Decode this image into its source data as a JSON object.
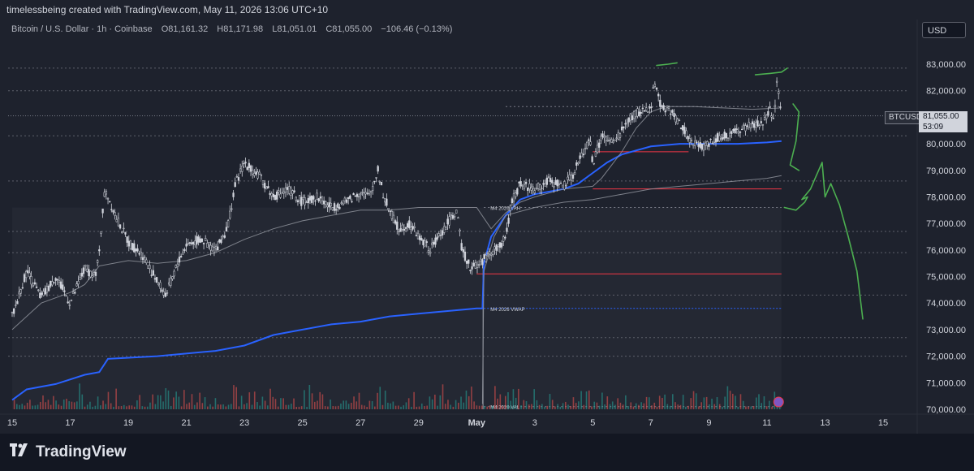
{
  "header": {
    "credit": "timelessbeing created with TradingView.com, May 11, 2026 13:06 UTC+10"
  },
  "legend": {
    "symbol": "Bitcoin / U.S. Dollar · 1h · Coinbase",
    "open": "O81,161.32",
    "high": "H81,171.98",
    "low": "L81,051.01",
    "close": "C81,055.00",
    "change": "−106.46 (−0.13%)"
  },
  "currency_button": "USD",
  "price_badge": {
    "symbol": "BTCUSD",
    "price": "81,055.00",
    "countdown": "53:09"
  },
  "brand": {
    "name": "TradingView"
  },
  "colors": {
    "bg": "#1e222d",
    "candle": "#d1d4dc",
    "vwap": "#2962ff",
    "level_red": "#f23645",
    "marker_green": "#4caf50",
    "volume_up": "#26a69a",
    "volume_down": "#ef5350"
  },
  "chart_data": {
    "type": "candlestick",
    "timeframe": "1h",
    "y_ticks": [
      83000,
      82000,
      81000,
      80000,
      79000,
      78000,
      77000,
      76000,
      75000,
      74000,
      73000,
      72000,
      71000,
      70000
    ],
    "y_tick_labels": [
      "83,000.00",
      "82,000.00",
      "81,000.00",
      "80,000.00",
      "79,000.00",
      "78,000.00",
      "77,000.00",
      "76,000.00",
      "75,000.00",
      "74,000.00",
      "73,000.00",
      "72,000.00",
      "71,000.00",
      "70,000.00"
    ],
    "x_ticks": [
      {
        "day": 15,
        "label": "15"
      },
      {
        "day": 17,
        "label": "17"
      },
      {
        "day": 19,
        "label": "19"
      },
      {
        "day": 21,
        "label": "21"
      },
      {
        "day": 23,
        "label": "23"
      },
      {
        "day": 25,
        "label": "25"
      },
      {
        "day": 27,
        "label": "27"
      },
      {
        "day": 29,
        "label": "29"
      },
      {
        "day": 31,
        "label": "May"
      },
      {
        "day": 33,
        "label": "3"
      },
      {
        "day": 35,
        "label": "5"
      },
      {
        "day": 37,
        "label": "7"
      },
      {
        "day": 39,
        "label": "9"
      },
      {
        "day": 41,
        "label": "11"
      },
      {
        "day": 43,
        "label": "13"
      },
      {
        "day": 45,
        "label": "15"
      }
    ],
    "price_path": [
      [
        15.0,
        73500
      ],
      [
        15.5,
        75200
      ],
      [
        16.0,
        74200
      ],
      [
        16.5,
        75000
      ],
      [
        17.0,
        74000
      ],
      [
        17.5,
        75300
      ],
      [
        17.9,
        75000
      ],
      [
        18.2,
        78300
      ],
      [
        18.6,
        77200
      ],
      [
        19.0,
        76300
      ],
      [
        19.5,
        75800
      ],
      [
        20.0,
        74800
      ],
      [
        20.3,
        74300
      ],
      [
        20.7,
        75500
      ],
      [
        21.0,
        76200
      ],
      [
        21.5,
        76400
      ],
      [
        22.0,
        76000
      ],
      [
        22.4,
        76800
      ],
      [
        22.7,
        78500
      ],
      [
        23.0,
        79300
      ],
      [
        23.5,
        78800
      ],
      [
        24.0,
        78000
      ],
      [
        24.5,
        78300
      ],
      [
        25.0,
        77800
      ],
      [
        25.5,
        78000
      ],
      [
        26.0,
        77600
      ],
      [
        26.5,
        77800
      ],
      [
        27.0,
        78200
      ],
      [
        27.3,
        78000
      ],
      [
        27.6,
        79000
      ],
      [
        27.8,
        78000
      ],
      [
        28.0,
        77500
      ],
      [
        28.3,
        76800
      ],
      [
        28.7,
        77000
      ],
      [
        29.0,
        76500
      ],
      [
        29.4,
        76000
      ],
      [
        29.7,
        76500
      ],
      [
        30.0,
        77000
      ],
      [
        30.3,
        77500
      ],
      [
        30.5,
        76000
      ],
      [
        30.8,
        75300
      ],
      [
        31.2,
        75600
      ],
      [
        31.6,
        76000
      ],
      [
        32.0,
        76400
      ],
      [
        32.2,
        77800
      ],
      [
        32.5,
        78500
      ],
      [
        33.0,
        78300
      ],
      [
        33.5,
        78600
      ],
      [
        34.0,
        78400
      ],
      [
        34.3,
        78800
      ],
      [
        34.6,
        79500
      ],
      [
        34.9,
        80200
      ],
      [
        35.0,
        79200
      ],
      [
        35.3,
        80300
      ],
      [
        35.7,
        80000
      ],
      [
        36.0,
        80500
      ],
      [
        36.3,
        81000
      ],
      [
        36.6,
        81200
      ],
      [
        37.0,
        81300
      ],
      [
        37.1,
        82500
      ],
      [
        37.3,
        81500
      ],
      [
        37.6,
        81300
      ],
      [
        38.0,
        80800
      ],
      [
        38.4,
        80000
      ],
      [
        38.8,
        79900
      ],
      [
        39.2,
        80200
      ],
      [
        39.6,
        80300
      ],
      [
        40.0,
        80500
      ],
      [
        40.5,
        80700
      ],
      [
        40.9,
        80800
      ],
      [
        41.1,
        81300
      ],
      [
        41.2,
        80600
      ],
      [
        41.35,
        82300
      ],
      [
        41.5,
        81055
      ]
    ],
    "series": [
      {
        "name": "M4 2026 VWAP",
        "type": "line",
        "points": [
          [
            15.0,
            70350
          ],
          [
            15.5,
            70750
          ],
          [
            16.5,
            70950
          ],
          [
            17.5,
            71300
          ],
          [
            18.0,
            71400
          ],
          [
            18.3,
            71900
          ],
          [
            20.0,
            72000
          ],
          [
            22.0,
            72200
          ],
          [
            23.0,
            72400
          ],
          [
            24.0,
            72800
          ],
          [
            25.0,
            73000
          ],
          [
            26.0,
            73200
          ],
          [
            27.0,
            73300
          ],
          [
            28.0,
            73500
          ],
          [
            29.0,
            73600
          ],
          [
            30.0,
            73700
          ],
          [
            31.0,
            73800
          ],
          [
            31.2,
            73800
          ],
          [
            31.25,
            75500
          ],
          [
            31.5,
            76500
          ],
          [
            32.0,
            77300
          ],
          [
            32.5,
            77900
          ],
          [
            33.0,
            78100
          ],
          [
            34.0,
            78300
          ],
          [
            34.5,
            78500
          ],
          [
            35.0,
            78900
          ],
          [
            35.5,
            79300
          ],
          [
            36.0,
            79600
          ],
          [
            37.0,
            79900
          ],
          [
            38.0,
            80000
          ],
          [
            39.0,
            80000
          ],
          [
            40.0,
            80000
          ],
          [
            41.0,
            80050
          ],
          [
            41.5,
            80100
          ]
        ]
      },
      {
        "type": "line",
        "points": [
          [
            15.0,
            73000
          ],
          [
            16.0,
            74000
          ],
          [
            17.0,
            74400
          ],
          [
            17.5,
            74700
          ],
          [
            18.0,
            75400
          ],
          [
            19.0,
            75600
          ],
          [
            20.0,
            75500
          ],
          [
            21.0,
            75600
          ],
          [
            22.0,
            75900
          ],
          [
            23.0,
            76400
          ],
          [
            24.0,
            76800
          ],
          [
            25.0,
            77100
          ],
          [
            26.0,
            77300
          ],
          [
            27.0,
            77500
          ],
          [
            28.0,
            77500
          ],
          [
            29.0,
            77600
          ],
          [
            30.0,
            77600
          ],
          [
            31.0,
            77600
          ],
          [
            31.5,
            76800
          ],
          [
            32.0,
            77400
          ],
          [
            32.5,
            77800
          ],
          [
            33.0,
            78000
          ],
          [
            34.0,
            78300
          ],
          [
            35.0,
            78400
          ],
          [
            35.3,
            78700
          ],
          [
            36.0,
            79700
          ],
          [
            36.5,
            80600
          ],
          [
            37.0,
            81200
          ],
          [
            37.5,
            81400
          ],
          [
            38.5,
            81400
          ],
          [
            39.5,
            81350
          ],
          [
            40.5,
            81300
          ],
          [
            41.5,
            81350
          ]
        ]
      },
      {
        "type": "line",
        "points": [
          [
            31.2,
            70200
          ],
          [
            31.25,
            75200
          ],
          [
            31.6,
            76500
          ],
          [
            32.0,
            77300
          ],
          [
            33.0,
            77600
          ],
          [
            34.0,
            77800
          ],
          [
            35.0,
            77900
          ],
          [
            36.0,
            78100
          ],
          [
            37.0,
            78300
          ],
          [
            38.0,
            78400
          ],
          [
            39.0,
            78500
          ],
          [
            40.0,
            78600
          ],
          [
            41.0,
            78700
          ],
          [
            41.5,
            78800
          ]
        ]
      }
    ],
    "levels": [
      {
        "label": "M4 2026 VWAP",
        "y": 73800,
        "x_from": 31.25,
        "x_to": 41.5,
        "style": "dotted-blue"
      },
      {
        "label": "M4 2026 VAH",
        "y": 77600,
        "x_from": 31.25,
        "x_to": 41.5,
        "style": "dotted-white"
      },
      {
        "label": "M4 2026 VAL",
        "y": 70100,
        "x_from": 31.25,
        "x_to": 41.5,
        "style": "dotted-white"
      },
      {
        "y": 75100,
        "x_from": 31.0,
        "x_to": 41.5,
        "style": "red"
      },
      {
        "y": 78300,
        "x_from": 35.0,
        "x_to": 41.5,
        "style": "red"
      },
      {
        "y": 79700,
        "x_from": 35.0,
        "x_to": 38.3,
        "style": "red"
      },
      {
        "y": 81400,
        "x_from": 32.0,
        "x_to": 41.5,
        "style": "dotted-white"
      }
    ],
    "current_price": 81055.0,
    "drawings": [
      {
        "type": "freehand",
        "color": "green",
        "points": [
          [
            37.2,
            82950
          ],
          [
            37.6,
            83000
          ],
          [
            37.9,
            83050
          ]
        ]
      },
      {
        "type": "freehand",
        "color": "green",
        "points": [
          [
            40.6,
            82600
          ],
          [
            41.1,
            82650
          ],
          [
            41.5,
            82700
          ],
          [
            41.7,
            82850
          ]
        ]
      },
      {
        "type": "freehand",
        "color": "green",
        "points": [
          [
            41.9,
            81500
          ],
          [
            42.1,
            81200
          ],
          [
            42.0,
            80100
          ],
          [
            41.8,
            79200
          ],
          [
            42.1,
            79000
          ]
        ]
      },
      {
        "type": "freehand",
        "color": "green",
        "points": [
          [
            41.6,
            77600
          ],
          [
            42.0,
            77500
          ],
          [
            42.3,
            77800
          ],
          [
            42.4,
            78000
          ],
          [
            42.2,
            77900
          ],
          [
            42.5,
            78300
          ],
          [
            42.7,
            78800
          ],
          [
            42.9,
            79300
          ],
          [
            43.0,
            78000
          ],
          [
            43.2,
            78500
          ],
          [
            43.5,
            77700
          ],
          [
            43.8,
            76500
          ],
          [
            44.1,
            75200
          ],
          [
            44.2,
            74300
          ],
          [
            44.3,
            73400
          ]
        ]
      }
    ],
    "grid": false
  }
}
